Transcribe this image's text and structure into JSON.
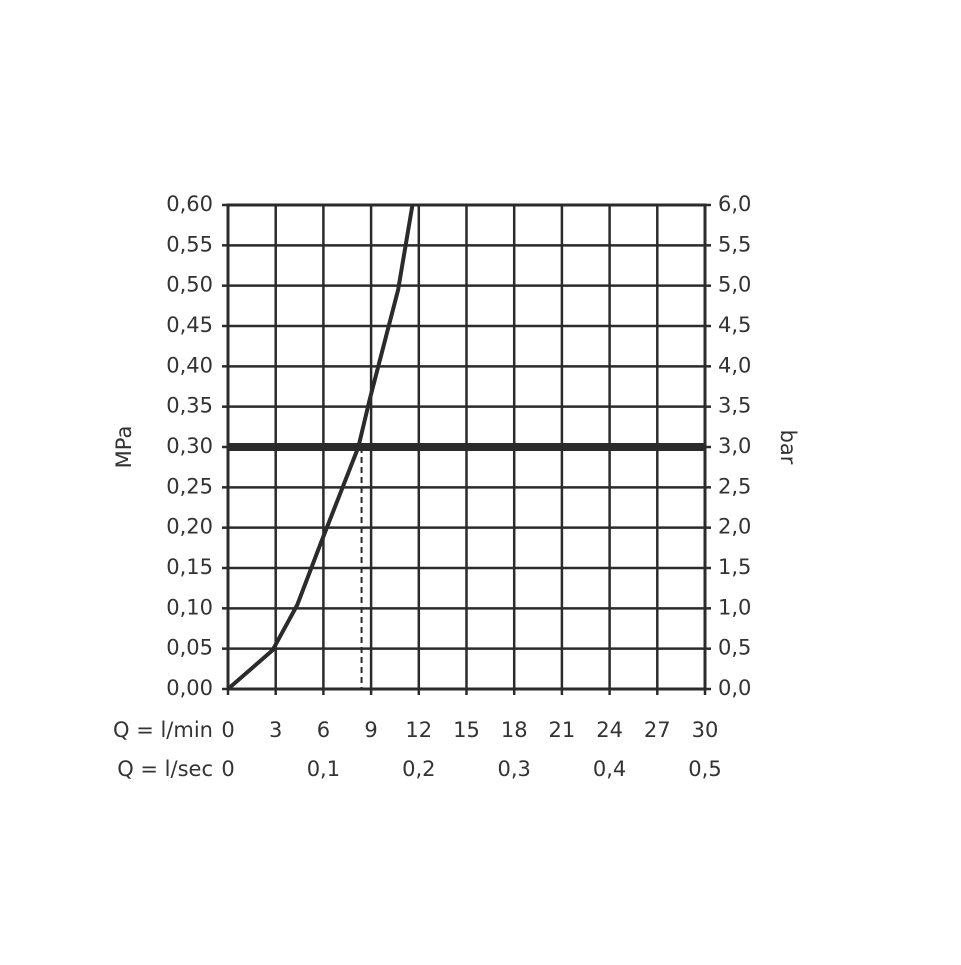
{
  "chart_data": {
    "type": "line",
    "x_label": "Q = l/min",
    "x2_label": "Q = l/sec",
    "y_label": "MPa",
    "y2_label": "bar",
    "x": [
      0,
      2.8,
      4.35,
      5.8,
      8.2,
      8.9,
      10.7,
      11.6
    ],
    "series": [
      {
        "color": "#2b2b2b",
        "values": [
          0,
          0.048,
          0.104,
          0.179,
          0.3,
          0.358,
          0.495,
          0.6
        ]
      }
    ],
    "xlim": [
      0,
      30
    ],
    "xticks": [
      0,
      3,
      6,
      9,
      12,
      15,
      18,
      21,
      24,
      27,
      30
    ],
    "x2lim": [
      0,
      0.5
    ],
    "x2ticks": [
      0,
      {
        "value": 0.1,
        "label": "0,1"
      },
      {
        "value": 0.2,
        "label": "0,2"
      },
      {
        "value": 0.3,
        "label": "0,3"
      },
      {
        "value": 0.4,
        "label": "0,4"
      },
      {
        "value": 0.5,
        "label": "0,5"
      }
    ],
    "ylim": [
      0,
      0.6
    ],
    "yticks": [
      {
        "value": 0,
        "label": "0,00"
      },
      {
        "value": 0.05,
        "label": "0,05"
      },
      {
        "value": 0.1,
        "label": "0,10"
      },
      {
        "value": 0.15,
        "label": "0,15"
      },
      {
        "value": 0.2,
        "label": "0,20"
      },
      {
        "value": 0.25,
        "label": "0,25"
      },
      {
        "value": 0.3,
        "label": "0,30"
      },
      {
        "value": 0.35,
        "label": "0,35"
      },
      {
        "value": 0.4,
        "label": "0,40"
      },
      {
        "value": 0.45,
        "label": "0,45"
      },
      {
        "value": 0.5,
        "label": "0,50"
      },
      {
        "value": 0.55,
        "label": "0,55"
      },
      {
        "value": 0.6,
        "label": "0,60"
      }
    ],
    "y2lim": [
      0,
      6
    ],
    "y2ticks": [
      {
        "value": 0,
        "label": "0,0"
      },
      {
        "value": 0.5,
        "label": "0,5"
      },
      {
        "value": 1,
        "label": "1,0"
      },
      {
        "value": 1.5,
        "label": "1,5"
      },
      {
        "value": 2,
        "label": "2,0"
      },
      {
        "value": 2.5,
        "label": "2,5"
      },
      {
        "value": 3,
        "label": "3,0"
      },
      {
        "value": 3.5,
        "label": "3,5"
      },
      {
        "value": 4,
        "label": "4,0"
      },
      {
        "value": 4.5,
        "label": "4,5"
      },
      {
        "value": 5,
        "label": "5,0"
      },
      {
        "value": 5.5,
        "label": "5,5"
      },
      {
        "value": 6,
        "label": "6,0"
      }
    ],
    "hline": 0.3,
    "vline": 8.4,
    "grid": true
  }
}
